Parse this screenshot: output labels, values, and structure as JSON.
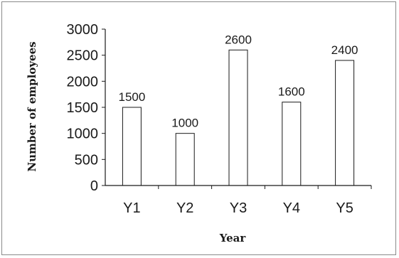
{
  "chart_data": {
    "type": "bar",
    "categories": [
      "Y1",
      "Y2",
      "Y3",
      "Y4",
      "Y5"
    ],
    "values": [
      1500,
      1000,
      2600,
      1600,
      2400
    ],
    "data_labels": [
      "1500",
      "1000",
      "2600",
      "1600",
      "2400"
    ],
    "xlabel": "Year",
    "ylabel": "Number of employees",
    "ylim": [
      0,
      3000
    ],
    "yticks": [
      "0",
      "500",
      "1000",
      "1500",
      "2000",
      "2500",
      "3000"
    ],
    "grid": false,
    "legend": "none",
    "colors": {
      "bar_fill": "#ffffff",
      "bar_stroke": "#1a1a1a",
      "axis": "#1a1a1a"
    }
  }
}
